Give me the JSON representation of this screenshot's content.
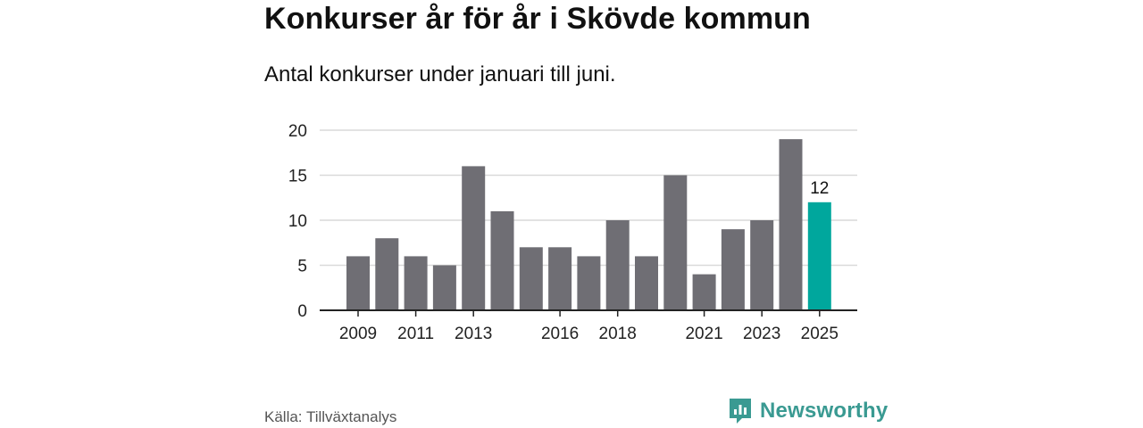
{
  "title": "Konkurser år för år i Skövde kommun",
  "subtitle": "Antal konkurser under januari till juni.",
  "source": "Källa: Tillväxtanalys",
  "brand": {
    "name": "Newsworthy",
    "icon": "newsworthy-logo-icon",
    "color": "#3a9a92"
  },
  "chart_data": {
    "type": "bar",
    "categories": [
      "2009",
      "2010",
      "2011",
      "2012",
      "2013",
      "2014",
      "2015",
      "2016",
      "2017",
      "2018",
      "2019",
      "2020",
      "2021",
      "2022",
      "2023",
      "2024",
      "2025"
    ],
    "values": [
      6,
      8,
      6,
      5,
      16,
      11,
      7,
      7,
      6,
      10,
      6,
      15,
      4,
      9,
      10,
      19,
      12
    ],
    "x_tick_labels": [
      "2009",
      "2011",
      "2013",
      "2016",
      "2018",
      "2021",
      "2023",
      "2025"
    ],
    "y_ticks": [
      0,
      5,
      10,
      15,
      20
    ],
    "ylim": [
      0,
      20
    ],
    "grid": true,
    "colors": {
      "bar": "#6f6e74",
      "highlight": "#00a79d",
      "grid": "#d9d9d9",
      "axis": "#222222"
    },
    "highlight": {
      "category": "2025",
      "label": "12"
    }
  }
}
